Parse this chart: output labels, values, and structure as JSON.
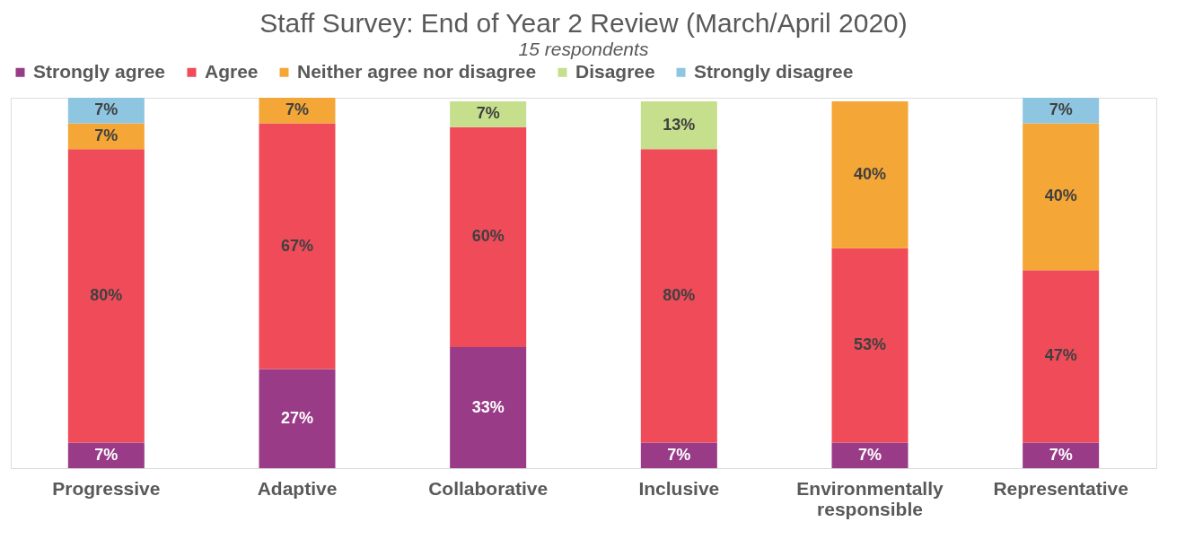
{
  "chart_data": {
    "type": "bar",
    "stacked": true,
    "title": "Staff Survey: End of Year 2 Review (March/April 2020)",
    "subtitle": "15 respondents",
    "categories": [
      "Progressive",
      "Adaptive",
      "Collaborative",
      "Inclusive",
      "Environmentally responsible",
      "Representative"
    ],
    "series": [
      {
        "name": "Strongly agree",
        "color": "#993b87",
        "values": [
          7,
          27,
          33,
          7,
          7,
          7
        ],
        "value_labels": [
          "7%",
          "27%",
          "33%",
          "7%",
          "7%",
          "7%"
        ]
      },
      {
        "name": "Agree",
        "color": "#ef4b59",
        "values": [
          80,
          67,
          60,
          80,
          53,
          47
        ],
        "value_labels": [
          "80%",
          "67%",
          "60%",
          "80%",
          "53%",
          "47%"
        ]
      },
      {
        "name": "Neither agree nor disagree",
        "color": "#f4a636",
        "values": [
          7,
          7,
          null,
          null,
          40,
          40
        ],
        "value_labels": [
          "7%",
          "7%",
          null,
          null,
          "40%",
          "40%"
        ]
      },
      {
        "name": "Disagree",
        "color": "#c6df8d",
        "values": [
          null,
          null,
          7,
          13,
          null,
          null
        ],
        "value_labels": [
          null,
          null,
          "7%",
          "13%",
          null,
          null
        ]
      },
      {
        "name": "Strongly disagree",
        "color": "#8ec6e1",
        "values": [
          7,
          null,
          null,
          null,
          null,
          7
        ],
        "value_labels": [
          "7%",
          null,
          null,
          null,
          null,
          "7%"
        ]
      }
    ],
    "legend": "top",
    "tick_labels": "x",
    "grid": false
  }
}
